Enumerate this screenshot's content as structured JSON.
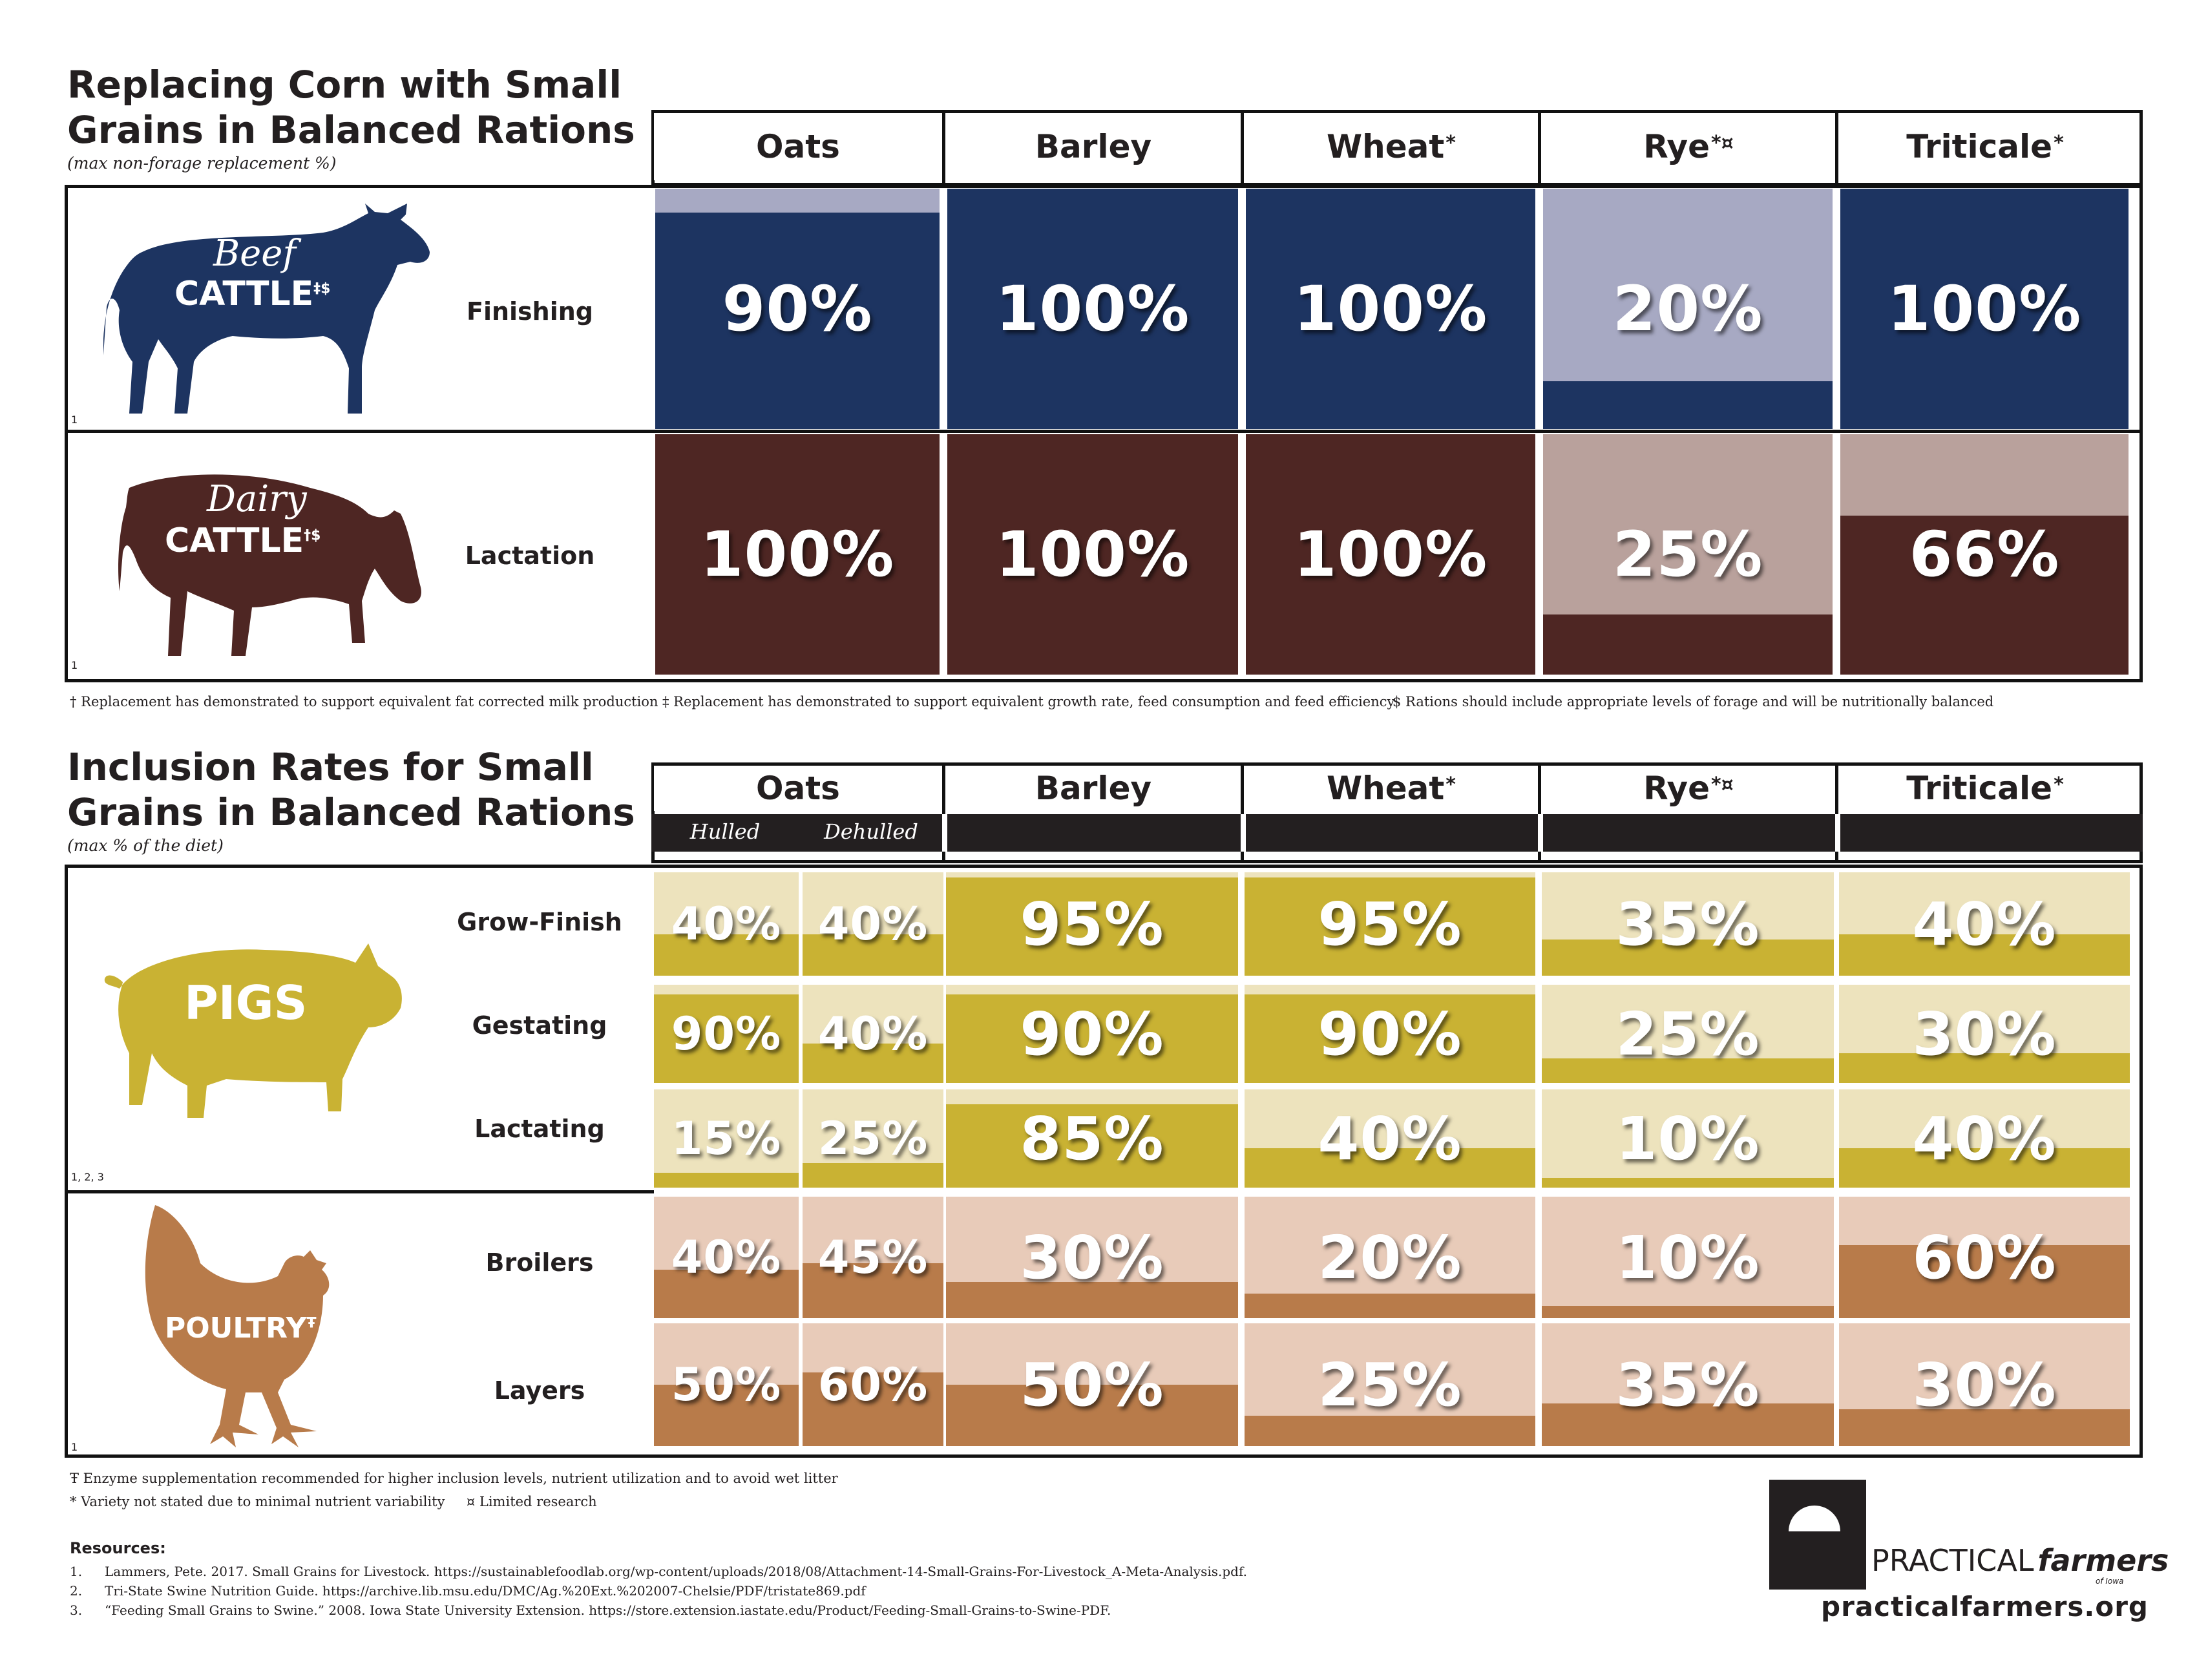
{
  "section1": {
    "title_line1": "Replacing Corn with Small",
    "title_line2": "Grains in Balanced Rations",
    "subtitle": "(max non-forage replacement %)",
    "headers": [
      {
        "label": "Oats",
        "mark": ""
      },
      {
        "label": "Barley",
        "mark": ""
      },
      {
        "label": "Wheat",
        "mark": "*"
      },
      {
        "label": "Rye",
        "mark": "*¤"
      },
      {
        "label": "Triticale",
        "mark": "*"
      }
    ],
    "animals": [
      {
        "name_script": "Beef",
        "name_caps": "CATTLE",
        "marks": "‡$",
        "ref": "1",
        "stage": "Finishing",
        "color": "#1d3461",
        "light": "#a7a9c3"
      },
      {
        "name_script": "Dairy",
        "name_caps": "CATTLE",
        "marks": "†$",
        "ref": "1",
        "stage": "Lactation",
        "color": "#4e2623",
        "light": "#b9a19c"
      }
    ],
    "footnotes": [
      "† Replacement has demonstrated to support equivalent fat corrected milk production",
      "‡ Replacement has demonstrated to support equivalent growth rate, feed consumption and feed efficiency",
      "$ Rations should include appropriate levels of forage and will be nutritionally balanced"
    ]
  },
  "section2": {
    "title_line1": "Inclusion Rates for Small",
    "title_line2": "Grains in Balanced Rations",
    "subtitle": "(max % of the diet)",
    "headers": [
      {
        "label": "Oats",
        "mark": ""
      },
      {
        "label": "Barley",
        "mark": ""
      },
      {
        "label": "Wheat",
        "mark": "*"
      },
      {
        "label": "Rye",
        "mark": "*¤"
      },
      {
        "label": "Triticale",
        "mark": "*"
      }
    ],
    "oats_sub": [
      "Hulled",
      "Dehulled"
    ],
    "pigs": {
      "label": "PIGS",
      "ref": "1, 2, 3",
      "color": "#c9b233",
      "light": "#ede3bd",
      "stages": [
        "Grow-Finish",
        "Gestating",
        "Lactating"
      ]
    },
    "poultry": {
      "label": "POULTRY",
      "mark": "Ŧ",
      "ref": "1",
      "color": "#b87b4a",
      "light": "#e8cbb9",
      "stages": [
        "Broilers",
        "Layers"
      ]
    },
    "footnotes": [
      "Ŧ Enzyme supplementation recommended for higher inclusion levels, nutrient utilization and to avoid wet litter",
      "* Variety not stated due to minimal nutrient variability     ¤ Limited research"
    ]
  },
  "resources": {
    "heading": "Resources:",
    "items": [
      {
        "num": "1.",
        "text": "Lammers, Pete. 2017. Small Grains for Livestock. https://sustainablefoodlab.org/wp-content/uploads/2018/08/Attachment-14-Small-Grains-For-Livestock_A-Meta-Analysis.pdf."
      },
      {
        "num": "2.",
        "text": "Tri-State Swine Nutrition Guide. https://archive.lib.msu.edu/DMC/Ag.%20Ext.%202007-Chelsie/PDF/tristate869.pdf"
      },
      {
        "num": "3.",
        "text": "“Feeding Small Grains to Swine.” 2008. Iowa State University Extension. https://store.extension.iastate.edu/Product/Feeding-Small-Grains-to-Swine-PDF."
      }
    ]
  },
  "logo": {
    "brand": "PRACTICAL",
    "brand2": "farmers",
    "of": "of Iowa",
    "url": "practicalfarmers.org"
  },
  "chart_data": [
    {
      "type": "table",
      "title": "Replacing Corn with Small Grains in Balanced Rations",
      "subtitle": "(max non-forage replacement %)",
      "columns": [
        "Oats",
        "Barley",
        "Wheat",
        "Rye",
        "Triticale"
      ],
      "rows": [
        {
          "group": "Beef Cattle",
          "stage": "Finishing",
          "values": [
            90,
            100,
            100,
            20,
            100
          ]
        },
        {
          "group": "Dairy Cattle",
          "stage": "Lactation",
          "values": [
            100,
            100,
            100,
            25,
            66
          ]
        }
      ]
    },
    {
      "type": "table",
      "title": "Inclusion Rates for Small Grains in Balanced Rations",
      "subtitle": "(max % of the diet)",
      "columns": [
        "Oats Hulled",
        "Oats Dehulled",
        "Barley",
        "Wheat",
        "Rye",
        "Triticale"
      ],
      "rows": [
        {
          "group": "Pigs",
          "stage": "Grow-Finish",
          "values": [
            40,
            40,
            95,
            95,
            35,
            40
          ]
        },
        {
          "group": "Pigs",
          "stage": "Gestating",
          "values": [
            90,
            40,
            90,
            90,
            25,
            30
          ]
        },
        {
          "group": "Pigs",
          "stage": "Lactating",
          "values": [
            15,
            25,
            85,
            40,
            10,
            40
          ]
        },
        {
          "group": "Poultry",
          "stage": "Broilers",
          "values": [
            40,
            45,
            30,
            20,
            10,
            60
          ]
        },
        {
          "group": "Poultry",
          "stage": "Layers",
          "values": [
            50,
            60,
            50,
            25,
            35,
            30
          ]
        }
      ]
    }
  ]
}
